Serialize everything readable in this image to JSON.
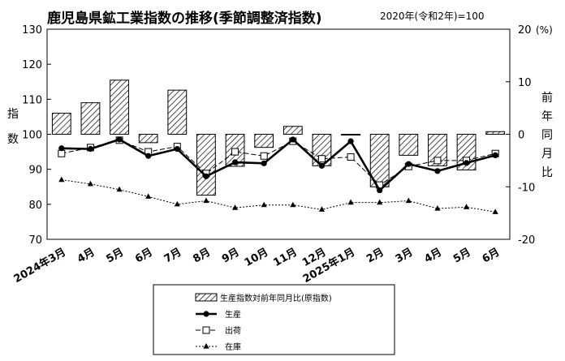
{
  "chart_data": {
    "type": "bar+line",
    "title": "鹿児島県鉱工業指数の推移(季節調整済指数)",
    "subtitle": "2020年(令和2年)=100",
    "ylabel_left": "指数",
    "ylabel_right": "前年同月比",
    "right_axis_unit": "(%)",
    "categories": [
      "2024年3月",
      "4月",
      "5月",
      "6月",
      "7月",
      "8月",
      "9月",
      "10月",
      "11月",
      "12月",
      "2025年1月",
      "2月",
      "3月",
      "4月",
      "5月",
      "6月"
    ],
    "ylim_left": [
      70,
      130
    ],
    "yticks_left": [
      70,
      80,
      90,
      100,
      110,
      120,
      130
    ],
    "ylim_right": [
      -20,
      20
    ],
    "yticks_right": [
      -20,
      -10,
      0,
      10,
      20
    ],
    "grid": false,
    "legend_position": "bottom",
    "bars": {
      "name": "生産指数対前年同月比(原指数)",
      "axis": "right",
      "values": [
        4.0,
        6.0,
        10.3,
        -1.6,
        8.4,
        -11.6,
        -6.1,
        -2.5,
        1.5,
        -6.0,
        0.0,
        -10.0,
        -4.0,
        -6.0,
        -6.8,
        0.5
      ]
    },
    "series": [
      {
        "name": "生産",
        "axis": "left",
        "marker": "circle",
        "style": "solid",
        "values": [
          96.0,
          95.8,
          98.5,
          93.8,
          95.8,
          88.0,
          92.0,
          91.7,
          98.5,
          91.0,
          98.0,
          84.0,
          91.5,
          89.5,
          91.8,
          94.0
        ]
      },
      {
        "name": "出荷",
        "axis": "left",
        "marker": "square",
        "style": "dashed",
        "values": [
          94.5,
          96.2,
          98.3,
          95.0,
          96.5,
          88.8,
          95.0,
          93.8,
          98.0,
          93.0,
          93.5,
          85.5,
          90.8,
          92.5,
          92.5,
          94.5
        ]
      },
      {
        "name": "在庫",
        "axis": "left",
        "marker": "triangle",
        "style": "dotted",
        "values": [
          87.0,
          85.8,
          84.2,
          82.2,
          80.0,
          81.0,
          79.0,
          79.8,
          79.8,
          78.5,
          80.5,
          80.5,
          81.0,
          78.8,
          79.2,
          77.8
        ]
      }
    ]
  }
}
